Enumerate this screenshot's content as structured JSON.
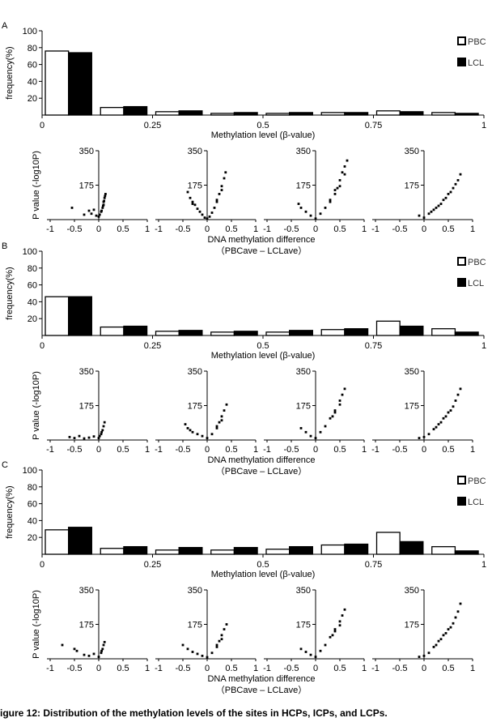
{
  "caption": "igure 12: Distribution of the methylation levels of the sites in HCPs, ICPs, and LCPs.",
  "colors": {
    "PBC": "#ffffff",
    "LCL": "#000000",
    "stroke": "#000000"
  },
  "chart_data": [
    {
      "panel": "A",
      "type": "bar",
      "ylabel": "frequency(%)",
      "xlabel": "Methylation level (β-value)",
      "ylim": [
        0,
        100
      ],
      "yticks": [
        "20",
        "40",
        "60",
        "80",
        "100"
      ],
      "xticks": [
        "0",
        "0.25",
        "0.5",
        "0.75",
        "1"
      ],
      "legend": [
        "PBC",
        "LCL"
      ],
      "series": [
        {
          "name": "PBC",
          "values": [
            76,
            9,
            4,
            2,
            2,
            3,
            5,
            3
          ]
        },
        {
          "name": "LCL",
          "values": [
            74,
            10,
            5,
            3,
            3,
            3,
            4,
            2
          ]
        }
      ]
    },
    {
      "panel": "A",
      "type": "scatter",
      "ylabel": "P value (-log10P)",
      "xlabel": "DNA methylation difference",
      "xlabel2": "（PBCave – LCLave）",
      "xlim": [
        -1,
        1
      ],
      "ylim": [
        0,
        350
      ],
      "yticks": [
        "175",
        "350"
      ],
      "xticks": [
        "-1",
        "-0.5",
        "0",
        "0.5",
        "1"
      ],
      "subplots": [
        {
          "points": [
            [
              -0.55,
              60
            ],
            [
              -0.3,
              25
            ],
            [
              -0.2,
              45
            ],
            [
              -0.15,
              30
            ],
            [
              -0.1,
              50
            ],
            [
              -0.05,
              20
            ],
            [
              0,
              15
            ],
            [
              0.05,
              40
            ],
            [
              0.08,
              60
            ],
            [
              0.1,
              90
            ],
            [
              0.12,
              110
            ],
            [
              0.14,
              130
            ],
            [
              0.1,
              75
            ],
            [
              0.06,
              45
            ],
            [
              0.02,
              25
            ],
            [
              0.11,
              95
            ],
            [
              0.13,
              120
            ],
            [
              0.09,
              70
            ]
          ]
        },
        {
          "points": [
            [
              -0.4,
              140
            ],
            [
              -0.35,
              110
            ],
            [
              -0.3,
              90
            ],
            [
              -0.25,
              75
            ],
            [
              -0.2,
              55
            ],
            [
              -0.15,
              40
            ],
            [
              -0.1,
              25
            ],
            [
              -0.05,
              10
            ],
            [
              0,
              5
            ],
            [
              0.05,
              15
            ],
            [
              0.1,
              35
            ],
            [
              0.15,
              60
            ],
            [
              0.2,
              90
            ],
            [
              0.25,
              130
            ],
            [
              0.3,
              170
            ],
            [
              0.35,
              210
            ],
            [
              0.38,
              240
            ],
            [
              0.3,
              150
            ],
            [
              0.2,
              100
            ],
            [
              -0.3,
              80
            ]
          ]
        },
        {
          "points": [
            [
              -0.35,
              80
            ],
            [
              -0.3,
              60
            ],
            [
              -0.2,
              40
            ],
            [
              -0.1,
              20
            ],
            [
              0,
              5
            ],
            [
              0.1,
              30
            ],
            [
              0.2,
              60
            ],
            [
              0.3,
              100
            ],
            [
              0.4,
              150
            ],
            [
              0.5,
              200
            ],
            [
              0.55,
              240
            ],
            [
              0.6,
              270
            ],
            [
              0.65,
              300
            ],
            [
              0.5,
              170
            ],
            [
              0.4,
              130
            ],
            [
              0.3,
              90
            ],
            [
              0.6,
              230
            ],
            [
              0.45,
              160
            ]
          ]
        },
        {
          "points": [
            [
              -0.1,
              20
            ],
            [
              0,
              10
            ],
            [
              0.1,
              30
            ],
            [
              0.2,
              50
            ],
            [
              0.3,
              70
            ],
            [
              0.4,
              100
            ],
            [
              0.5,
              130
            ],
            [
              0.6,
              160
            ],
            [
              0.65,
              180
            ],
            [
              0.7,
              200
            ],
            [
              0.75,
              230
            ],
            [
              0.55,
              140
            ],
            [
              0.45,
              110
            ],
            [
              0.35,
              80
            ],
            [
              0.25,
              60
            ],
            [
              0.15,
              40
            ]
          ]
        }
      ]
    },
    {
      "panel": "B",
      "type": "bar",
      "ylabel": "frequency(%)",
      "xlabel": "Methylation level (β-value)",
      "ylim": [
        0,
        100
      ],
      "yticks": [
        "20",
        "40",
        "60",
        "80",
        "100"
      ],
      "xticks": [
        "0",
        "0.25",
        "0.5",
        "0.75",
        "1"
      ],
      "legend": [
        "PBC",
        "LCL"
      ],
      "series": [
        {
          "name": "PBC",
          "values": [
            46,
            10,
            5,
            4,
            4,
            7,
            17,
            8
          ]
        },
        {
          "name": "LCL",
          "values": [
            46,
            11,
            6,
            5,
            6,
            8,
            11,
            4
          ]
        }
      ]
    },
    {
      "panel": "B",
      "type": "scatter",
      "ylabel": "P value (-log10P)",
      "xlabel": "DNA methylation difference",
      "xlabel2": "（PBCave – LCLave）",
      "xlim": [
        -1,
        1
      ],
      "ylim": [
        0,
        350
      ],
      "yticks": [
        "175",
        "350"
      ],
      "xticks": [
        "-1",
        "-0.5",
        "0",
        "0.5",
        "1"
      ],
      "subplots": [
        {
          "points": [
            [
              -0.6,
              15
            ],
            [
              -0.5,
              10
            ],
            [
              -0.4,
              20
            ],
            [
              -0.3,
              8
            ],
            [
              -0.2,
              12
            ],
            [
              -0.1,
              18
            ],
            [
              0,
              10
            ],
            [
              0.05,
              30
            ],
            [
              0.08,
              50
            ],
            [
              0.1,
              70
            ],
            [
              0.12,
              90
            ],
            [
              0.06,
              40
            ],
            [
              0.02,
              20
            ]
          ]
        },
        {
          "points": [
            [
              -0.45,
              80
            ],
            [
              -0.4,
              60
            ],
            [
              -0.35,
              50
            ],
            [
              -0.3,
              40
            ],
            [
              -0.2,
              30
            ],
            [
              -0.1,
              20
            ],
            [
              0,
              10
            ],
            [
              0.1,
              30
            ],
            [
              0.2,
              60
            ],
            [
              0.25,
              90
            ],
            [
              0.3,
              120
            ],
            [
              0.35,
              150
            ],
            [
              0.4,
              180
            ],
            [
              0.3,
              100
            ],
            [
              0.2,
              70
            ]
          ]
        },
        {
          "points": [
            [
              -0.3,
              60
            ],
            [
              -0.2,
              40
            ],
            [
              -0.1,
              20
            ],
            [
              0,
              10
            ],
            [
              0.1,
              40
            ],
            [
              0.2,
              70
            ],
            [
              0.3,
              110
            ],
            [
              0.4,
              150
            ],
            [
              0.5,
              200
            ],
            [
              0.55,
              230
            ],
            [
              0.6,
              260
            ],
            [
              0.5,
              180
            ],
            [
              0.4,
              140
            ],
            [
              0.35,
              120
            ]
          ]
        },
        {
          "points": [
            [
              -0.1,
              10
            ],
            [
              0,
              15
            ],
            [
              0.1,
              30
            ],
            [
              0.2,
              55
            ],
            [
              0.3,
              80
            ],
            [
              0.4,
              110
            ],
            [
              0.5,
              140
            ],
            [
              0.6,
              170
            ],
            [
              0.65,
              200
            ],
            [
              0.7,
              230
            ],
            [
              0.75,
              260
            ],
            [
              0.55,
              150
            ],
            [
              0.45,
              120
            ],
            [
              0.35,
              90
            ],
            [
              0.25,
              65
            ]
          ]
        }
      ]
    },
    {
      "panel": "C",
      "type": "bar",
      "ylabel": "frequency(%)",
      "xlabel": "Methylation level (β-value)",
      "ylim": [
        0,
        100
      ],
      "yticks": [
        "20",
        "40",
        "60",
        "80",
        "100"
      ],
      "xticks": [
        "0",
        "0.25",
        "0.5",
        "0.75",
        "1"
      ],
      "legend": [
        "PBC",
        "LCL"
      ],
      "series": [
        {
          "name": "PBC",
          "values": [
            29,
            7,
            5,
            5,
            6,
            11,
            26,
            9
          ]
        },
        {
          "name": "LCL",
          "values": [
            32,
            9,
            8,
            8,
            9,
            12,
            15,
            4
          ]
        }
      ]
    },
    {
      "panel": "C",
      "type": "scatter",
      "ylabel": "P value (-log10P)",
      "xlabel": "DNA methylation difference",
      "xlabel2": "（PBCave – LCLave）",
      "xlim": [
        -1,
        1
      ],
      "ylim": [
        0,
        350
      ],
      "yticks": [
        "175",
        "350"
      ],
      "xticks": [
        "-1",
        "-0.5",
        "0",
        "0.5",
        "1"
      ],
      "subplots": [
        {
          "points": [
            [
              -0.75,
              70
            ],
            [
              -0.5,
              50
            ],
            [
              -0.45,
              40
            ],
            [
              -0.3,
              20
            ],
            [
              -0.2,
              15
            ],
            [
              -0.1,
              25
            ],
            [
              0,
              10
            ],
            [
              0.05,
              30
            ],
            [
              0.08,
              50
            ],
            [
              0.1,
              70
            ],
            [
              0.12,
              85
            ],
            [
              0.06,
              40
            ]
          ]
        },
        {
          "points": [
            [
              -0.5,
              70
            ],
            [
              -0.4,
              50
            ],
            [
              -0.3,
              35
            ],
            [
              -0.2,
              25
            ],
            [
              -0.1,
              15
            ],
            [
              0,
              8
            ],
            [
              0.1,
              30
            ],
            [
              0.2,
              60
            ],
            [
              0.25,
              90
            ],
            [
              0.3,
              120
            ],
            [
              0.35,
              150
            ],
            [
              0.4,
              175
            ],
            [
              0.3,
              100
            ],
            [
              0.2,
              70
            ]
          ]
        },
        {
          "points": [
            [
              -0.3,
              50
            ],
            [
              -0.2,
              35
            ],
            [
              -0.1,
              20
            ],
            [
              0,
              10
            ],
            [
              0.1,
              40
            ],
            [
              0.2,
              70
            ],
            [
              0.3,
              110
            ],
            [
              0.4,
              150
            ],
            [
              0.5,
              190
            ],
            [
              0.55,
              220
            ],
            [
              0.6,
              250
            ],
            [
              0.5,
              170
            ],
            [
              0.4,
              140
            ],
            [
              0.35,
              120
            ]
          ]
        },
        {
          "points": [
            [
              -0.1,
              10
            ],
            [
              0,
              15
            ],
            [
              0.1,
              30
            ],
            [
              0.2,
              60
            ],
            [
              0.3,
              90
            ],
            [
              0.4,
              120
            ],
            [
              0.5,
              150
            ],
            [
              0.6,
              180
            ],
            [
              0.65,
              210
            ],
            [
              0.7,
              240
            ],
            [
              0.75,
              280
            ],
            [
              0.55,
              160
            ],
            [
              0.45,
              130
            ],
            [
              0.35,
              100
            ],
            [
              0.25,
              70
            ]
          ]
        }
      ]
    }
  ]
}
